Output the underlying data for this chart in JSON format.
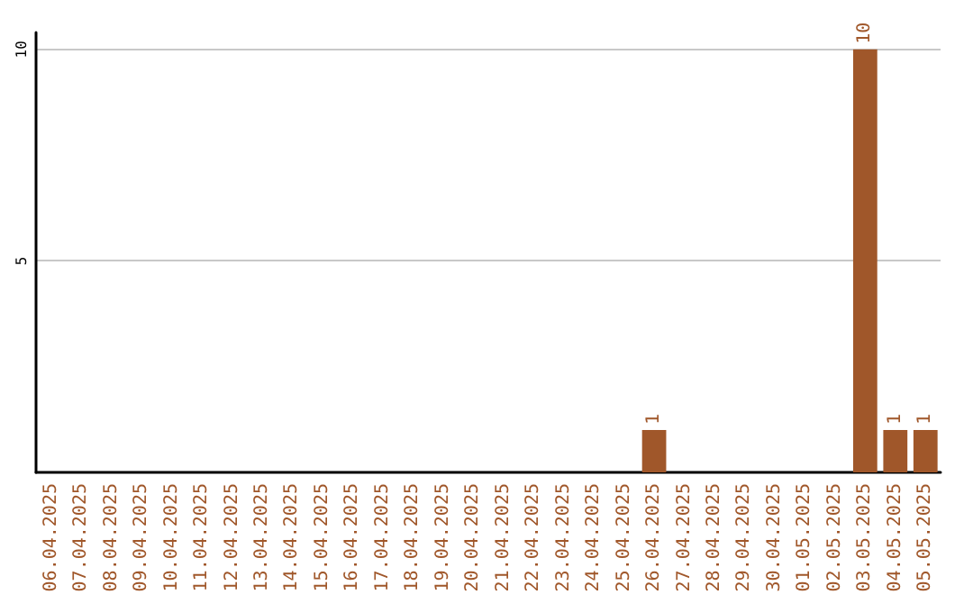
{
  "chart_data": {
    "type": "bar",
    "categories": [
      "06.04.2025",
      "07.04.2025",
      "08.04.2025",
      "09.04.2025",
      "10.04.2025",
      "11.04.2025",
      "12.04.2025",
      "13.04.2025",
      "14.04.2025",
      "15.04.2025",
      "16.04.2025",
      "17.04.2025",
      "18.04.2025",
      "19.04.2025",
      "20.04.2025",
      "21.04.2025",
      "22.04.2025",
      "23.04.2025",
      "24.04.2025",
      "25.04.2025",
      "26.04.2025",
      "27.04.2025",
      "28.04.2025",
      "29.04.2025",
      "30.04.2025",
      "01.05.2025",
      "02.05.2025",
      "03.05.2025",
      "04.05.2025",
      "05.05.2025"
    ],
    "values": [
      0,
      0,
      0,
      0,
      0,
      0,
      0,
      0,
      0,
      0,
      0,
      0,
      0,
      0,
      0,
      0,
      0,
      0,
      0,
      0,
      1,
      0,
      0,
      0,
      0,
      0,
      0,
      10,
      1,
      1
    ],
    "value_labels": [
      null,
      null,
      null,
      null,
      null,
      null,
      null,
      null,
      null,
      null,
      null,
      null,
      null,
      null,
      null,
      null,
      null,
      null,
      null,
      null,
      "1",
      null,
      null,
      null,
      null,
      null,
      null,
      "10",
      "1",
      "1"
    ],
    "color": "#a0572a",
    "ylim": [
      0,
      10.4
    ],
    "yticks": [
      5,
      10
    ],
    "grid": "y"
  }
}
